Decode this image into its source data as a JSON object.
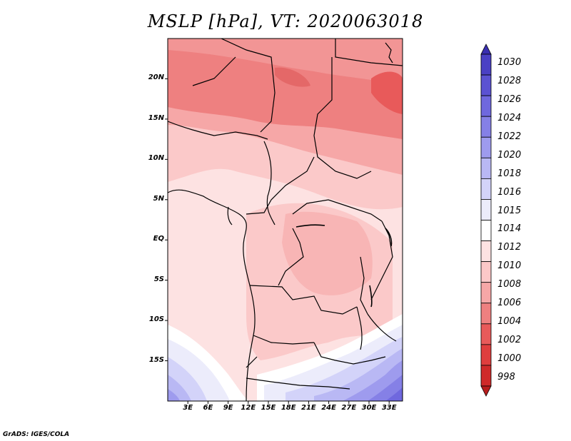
{
  "title": "MSLP [hPa], VT: 2020063018",
  "credit": "GrADS: IGES/COLA",
  "latitude_labels": [
    {
      "text": "20N",
      "value": 20
    },
    {
      "text": "15N",
      "value": 15
    },
    {
      "text": "10N",
      "value": 10
    },
    {
      "text": "5N",
      "value": 5
    },
    {
      "text": "EQ",
      "value": 0
    },
    {
      "text": "5S",
      "value": -5
    },
    {
      "text": "10S",
      "value": -10
    },
    {
      "text": "15S",
      "value": -15
    }
  ],
  "longitude_labels": [
    {
      "text": "3E",
      "value": 3
    },
    {
      "text": "6E",
      "value": 6
    },
    {
      "text": "9E",
      "value": 9
    },
    {
      "text": "12E",
      "value": 12
    },
    {
      "text": "15E",
      "value": 15
    },
    {
      "text": "18E",
      "value": 18
    },
    {
      "text": "21E",
      "value": 21
    },
    {
      "text": "24E",
      "value": 24
    },
    {
      "text": "27E",
      "value": 27
    },
    {
      "text": "30E",
      "value": 30
    },
    {
      "text": "33E",
      "value": 33
    }
  ],
  "map_extent": {
    "lon_min": 0,
    "lon_max": 35,
    "lat_min": -20,
    "lat_max": 25
  },
  "colorbar": {
    "levels": [
      "1030",
      "1028",
      "1026",
      "1024",
      "1022",
      "1020",
      "1018",
      "1016",
      "1015",
      "1014",
      "1012",
      "1010",
      "1008",
      "1006",
      "1004",
      "1002",
      "1000",
      "998"
    ],
    "colors": [
      "#3a2fb0",
      "#4a40c4",
      "#5b52d2",
      "#6f68de",
      "#8580e6",
      "#9e9bee",
      "#b9b8f4",
      "#d3d3f9",
      "#ececfb",
      "#ffffff",
      "#fde2e2",
      "#fcc8c8",
      "#f6a7a7",
      "#ee8080",
      "#e85a5a",
      "#df3e3e",
      "#cf2a2a",
      "#b81e1e"
    ]
  }
}
